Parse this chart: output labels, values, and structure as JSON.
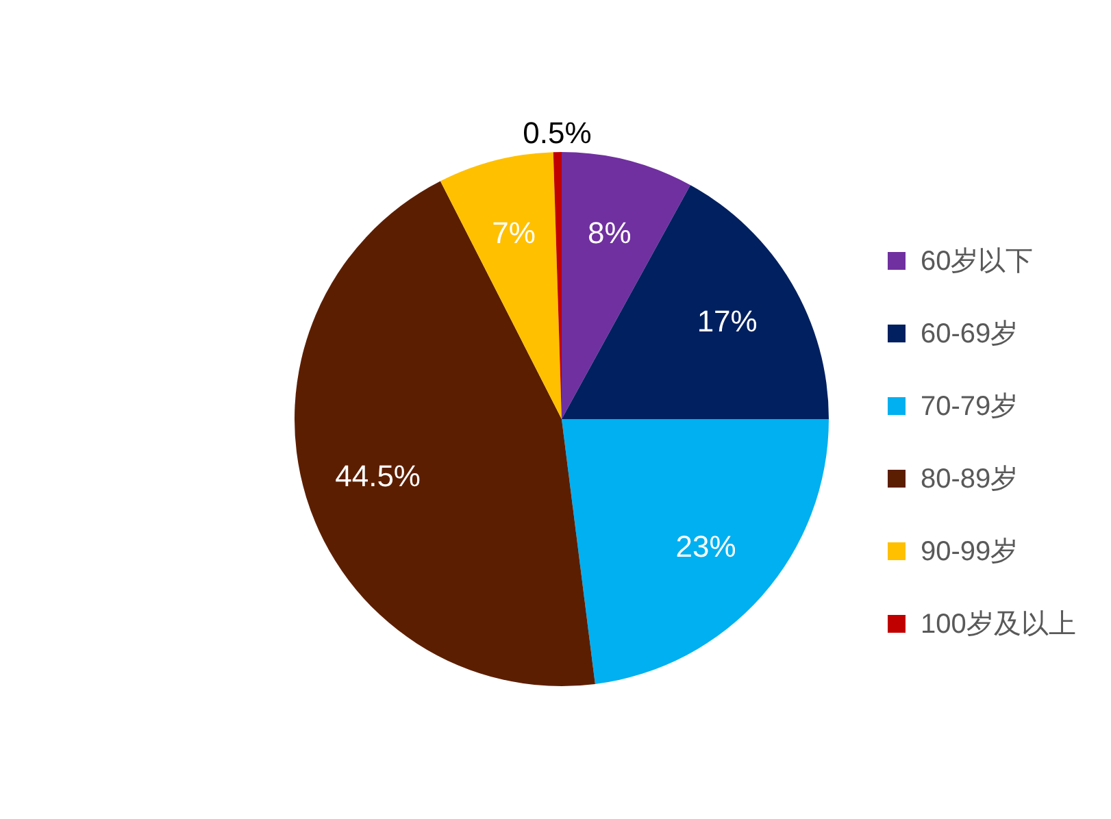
{
  "chart_data": {
    "type": "pie",
    "categories": [
      "60岁以下",
      "60-69岁",
      "70-79岁",
      "80-89岁",
      "90-99岁",
      "100岁及以上"
    ],
    "values": [
      8,
      17,
      23,
      44.5,
      7,
      0.5
    ],
    "colors": [
      "#7030a0",
      "#002060",
      "#00b0f0",
      "#5c1e00",
      "#ffc000",
      "#c00000"
    ],
    "value_labels": [
      "8%",
      "17%",
      "23%",
      "44.5%",
      "7%",
      "0.5%"
    ],
    "legend": "right"
  }
}
